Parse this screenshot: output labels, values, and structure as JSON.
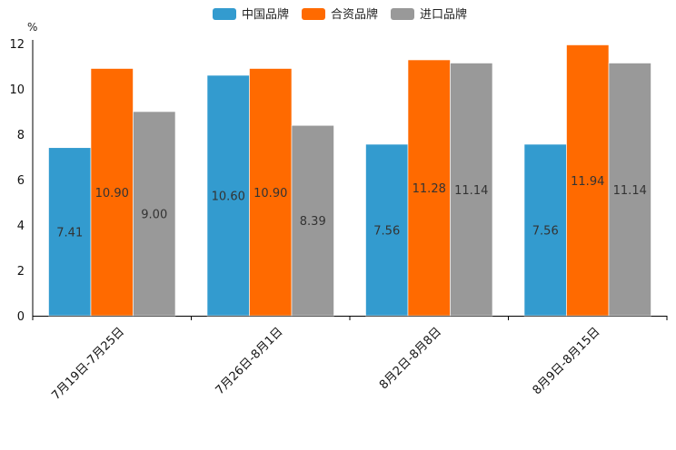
{
  "chart_data": {
    "type": "bar",
    "title": "",
    "ylabel": "%",
    "xlabel": "",
    "ylim": [
      0,
      12
    ],
    "yticks": [
      0,
      2,
      4,
      6,
      8,
      10,
      12
    ],
    "categories": [
      "7月19日-7月25日",
      "7月26日-8月1日",
      "8月2日-8月8日",
      "8月9日-8月15日"
    ],
    "series": [
      {
        "name": "中国品牌",
        "color": "#339bcf",
        "values": [
          7.41,
          10.6,
          7.56,
          7.56
        ],
        "labels": [
          "7.41",
          "10.60",
          "7.56",
          "7.56"
        ]
      },
      {
        "name": "合资品牌",
        "color": "#ff6a00",
        "values": [
          10.9,
          10.9,
          11.28,
          11.94
        ],
        "labels": [
          "10.90",
          "10.90",
          "11.28",
          "11.94"
        ]
      },
      {
        "name": "进口品牌",
        "color": "#999999",
        "values": [
          9.0,
          8.39,
          11.14,
          11.14
        ],
        "labels": [
          "9.00",
          "8.39",
          "11.14",
          "11.14"
        ]
      }
    ],
    "legend_position": "top-center",
    "grid": false
  }
}
